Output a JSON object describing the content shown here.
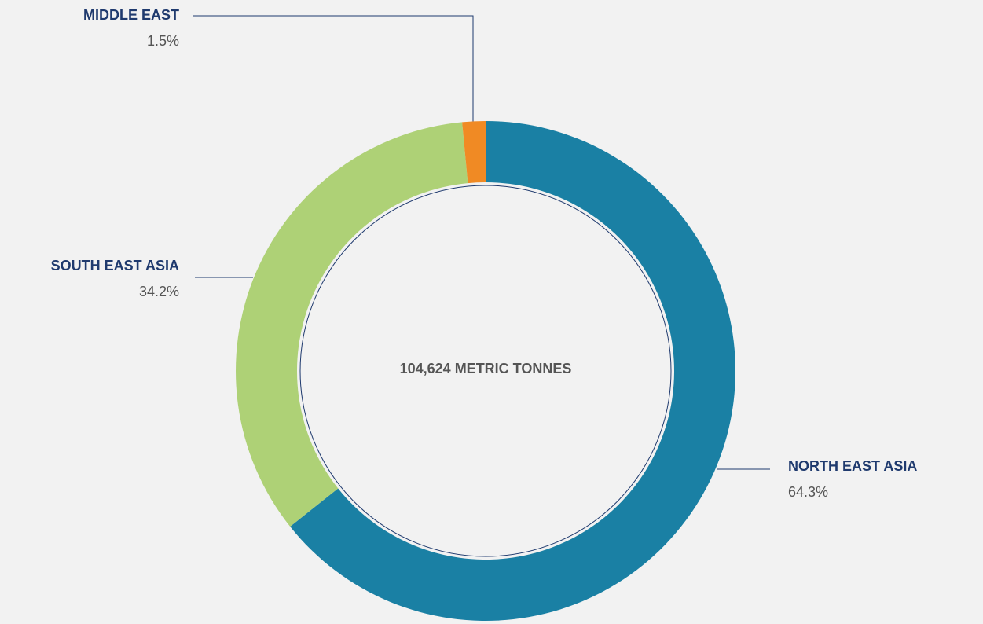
{
  "chart_data": {
    "type": "donut",
    "categories": [
      "NORTH EAST ASIA",
      "SOUTH EAST ASIA",
      "MIDDLE EAST"
    ],
    "values": [
      64.3,
      34.2,
      1.5
    ],
    "value_labels": [
      "64.3%",
      "34.2%",
      "1.5%"
    ],
    "colors": [
      "#1a80a4",
      "#aed176",
      "#f08a24"
    ],
    "center_text": "104,624 METRIC TONNES"
  }
}
